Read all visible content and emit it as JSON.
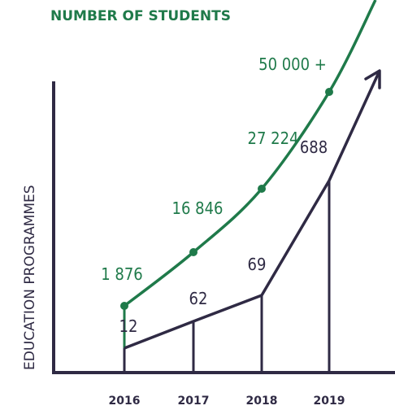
{
  "chart_data": {
    "type": "line",
    "x": [
      "2016",
      "2017",
      "2018",
      "2019"
    ],
    "title": "NUMBER OF STUDENTS",
    "ylabel": "EDUCATION PROGRAMMES",
    "series": [
      {
        "values": [
          1876,
          16846,
          27224,
          50000
        ],
        "labels": [
          "1 876",
          "16 846",
          "27 224",
          "50 000 +"
        ],
        "color": "#1f7a4a"
      },
      {
        "values": [
          12,
          62,
          69,
          688
        ],
        "labels": [
          "12",
          "62",
          "69",
          "688"
        ],
        "color": "#2f2a44"
      }
    ]
  }
}
